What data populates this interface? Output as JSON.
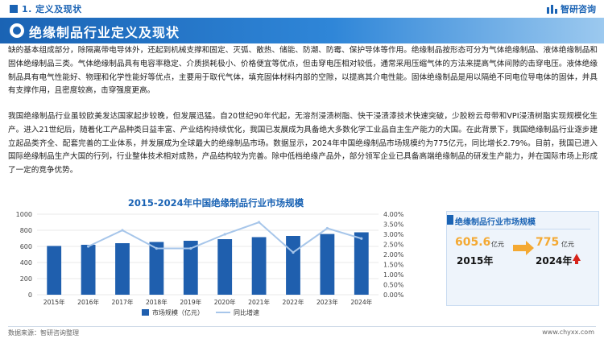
{
  "header": {
    "section": "1. 定义及现状",
    "logo": "智研咨询"
  },
  "banner": {
    "title": "绝缘制品行业定义及现状"
  },
  "paragraphs": [
    "缺的基本组成部分，除隔离带电导体外，还起到机械支撑和固定、灭弧、散热、储能、防潮、防霉、保护导体等作用。绝缘制品按形态可分为气体绝缘制品、液体绝缘制品和固体绝缘制品三类。气体绝缘制品具有电容率稳定、介质损耗极小、价格便宜等优点，但击穿电压相对较低，通常采用压缩气体的方法来提高气体间隙的击穿电压。液体绝缘制品具有电气性能好、物理和化学性能好等优点，主要用于取代气体，填充固体材料内部的空隙，以提高其介电性能。固体绝缘制品是用以隔绝不同电位导电体的固体，并具有支撑作用，且密度较高，击穿强度更高。",
    "我国绝缘制品行业虽较欧美发达国家起步较晚，但发展迅猛。自20世纪90年代起，无溶剂浸渍树脂、快干浸渍漆技术快速突破，少胶粉云母带和VPI浸渍树脂实现规模化生产。进入21世纪后，随着化工产品种类日益丰富、产业结构持续优化，我国已发展成为具备绝大多数化学工业品自主生产能力的大国。在此背景下，我国绝缘制品行业逐步建立起品类齐全、配套完善的工业体系，并发展成为全球最大的绝缘制品市场。数据显示，2024年中国绝缘制品市场规模约为775亿元，同比增长2.79%。目前，我国已进入国际绝缘制品生产大国的行列，行业整体技术相对成熟，产品结构较为完善。除中低档绝缘产品外，部分领军企业已具备高端绝缘制品的研发生产能力，并在国际市场上形成了一定的竞争优势。"
  ],
  "chart_data": {
    "type": "bar",
    "title": "2015-2024年中国绝缘制品行业市场规模",
    "categories": [
      "2015年",
      "2016年",
      "2017年",
      "2018年",
      "2019年",
      "2020年",
      "2021年",
      "2022年",
      "2023年",
      "2024年"
    ],
    "series": [
      {
        "name": "市场规模（亿元）",
        "type": "bar",
        "axis": "left",
        "color": "#1f5fae",
        "values": [
          605.6,
          620,
          640,
          655,
          670,
          690,
          715,
          730,
          754,
          775
        ]
      },
      {
        "name": "同比增速",
        "type": "line",
        "axis": "right",
        "color": "#a7c6ea",
        "values": [
          null,
          2.4,
          3.2,
          2.3,
          2.3,
          3.0,
          3.6,
          2.1,
          3.3,
          2.79
        ]
      }
    ],
    "y_left": {
      "ticks": [
        "0",
        "200",
        "400",
        "600",
        "800",
        "1000"
      ],
      "lim": [
        0,
        1000
      ]
    },
    "y_right": {
      "ticks": [
        "0.00%",
        "0.50%",
        "1.00%",
        "1.50%",
        "2.00%",
        "2.50%",
        "3.00%",
        "3.50%",
        "4.00%"
      ],
      "lim": [
        0,
        4
      ]
    },
    "legend_position": "bottom"
  },
  "card": {
    "title": "绝缘制品行业市场规模",
    "from_value": "605.6",
    "from_unit": "亿元",
    "from_year": "2015年",
    "to_value": "775",
    "to_unit": "亿元",
    "to_year": "2024年"
  },
  "footer": {
    "left": "数据来源：智研咨询整理",
    "right": "www.chyxx.com"
  },
  "colors": {
    "brand": "#1a63b4",
    "accent": "#f4a933",
    "up": "#d7241b"
  }
}
